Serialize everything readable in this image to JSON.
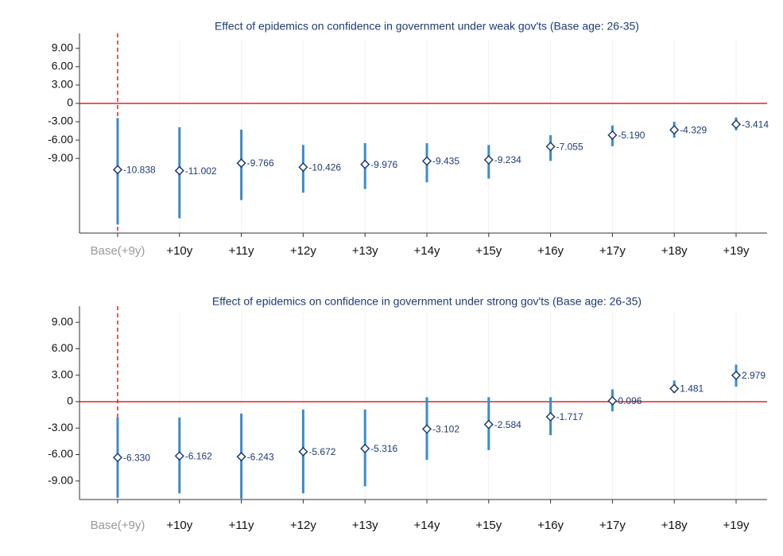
{
  "chart_data": [
    {
      "type": "errorbar",
      "title": "Effect of epidemics on confidence in government under weak gov'ts (Base age: 26-35)",
      "categories": [
        "Base(+9y)",
        "+10y",
        "+11y",
        "+12y",
        "+13y",
        "+14y",
        "+15y",
        "+16y",
        "+17y",
        "+18y",
        "+19y"
      ],
      "values": [
        -10.838,
        -11.002,
        -9.766,
        -10.426,
        -9.976,
        -9.435,
        -9.234,
        -7.055,
        -5.19,
        -4.329,
        -3.414
      ],
      "value_labels": [
        "-10.838",
        "-11.002",
        "-9.766",
        "-10.426",
        "-9.976",
        "-9.435",
        "-9.234",
        "-7.055",
        "-5.190",
        "-4.329",
        "-3.414"
      ],
      "lower": [
        -19.8,
        -18.8,
        -15.8,
        -14.6,
        -14.0,
        -12.9,
        -12.3,
        -9.4,
        -7.0,
        -5.6,
        -4.4
      ],
      "upper": [
        -2.4,
        -3.9,
        -4.3,
        -6.8,
        -6.5,
        -6.5,
        -6.8,
        -5.2,
        -3.6,
        -3.0,
        -2.3
      ],
      "color": "#3a8cc8",
      "ylim": [
        -21.2,
        10.4
      ],
      "yticks": [
        {
          "value": 9,
          "label": "9.00"
        },
        {
          "value": 6,
          "label": "6.00"
        },
        {
          "value": 3,
          "label": "3.00"
        },
        0,
        {
          "value": -3,
          "label": "-3.00"
        },
        {
          "value": -6,
          "label": "-6.00"
        },
        {
          "value": -9,
          "label": "-9.00"
        }
      ]
    },
    {
      "type": "errorbar",
      "title": "Effect of epidemics on confidence in government under strong gov'ts (Base age: 26-35)",
      "categories": [
        "Base(+9y)",
        "+10y",
        "+11y",
        "+12y",
        "+13y",
        "+14y",
        "+15y",
        "+16y",
        "+17y",
        "+18y",
        "+19y"
      ],
      "values": [
        -6.33,
        -6.162,
        -6.243,
        -5.672,
        -5.316,
        -3.102,
        -2.584,
        -1.717,
        0.096,
        1.481,
        2.979
      ],
      "value_labels": [
        "-6.330",
        "-6.162",
        "-6.243",
        "-5.672",
        "-5.316",
        "-3.102",
        "-2.584",
        "-1.717",
        "0.096",
        "1.481",
        "2.979"
      ],
      "lower": [
        -10.9,
        -10.4,
        -11.0,
        -10.4,
        -9.6,
        -6.6,
        -5.5,
        -3.8,
        -1.1,
        1.0,
        1.7
      ],
      "upper": [
        -1.8,
        -1.8,
        -1.35,
        -0.9,
        -0.9,
        0.5,
        0.5,
        0.5,
        1.4,
        2.4,
        4.2
      ],
      "color": "#3a8cc8",
      "ylim": [
        -11.1,
        10.1
      ],
      "yticks": [
        {
          "value": 9,
          "label": "9.00"
        },
        {
          "value": 6,
          "label": "6.00"
        },
        {
          "value": 3,
          "label": "3.00"
        },
        0,
        {
          "value": -3,
          "label": "-3.00"
        },
        {
          "value": -6,
          "label": "-6.00"
        },
        {
          "value": -9,
          "label": "-9.00"
        }
      ]
    }
  ]
}
